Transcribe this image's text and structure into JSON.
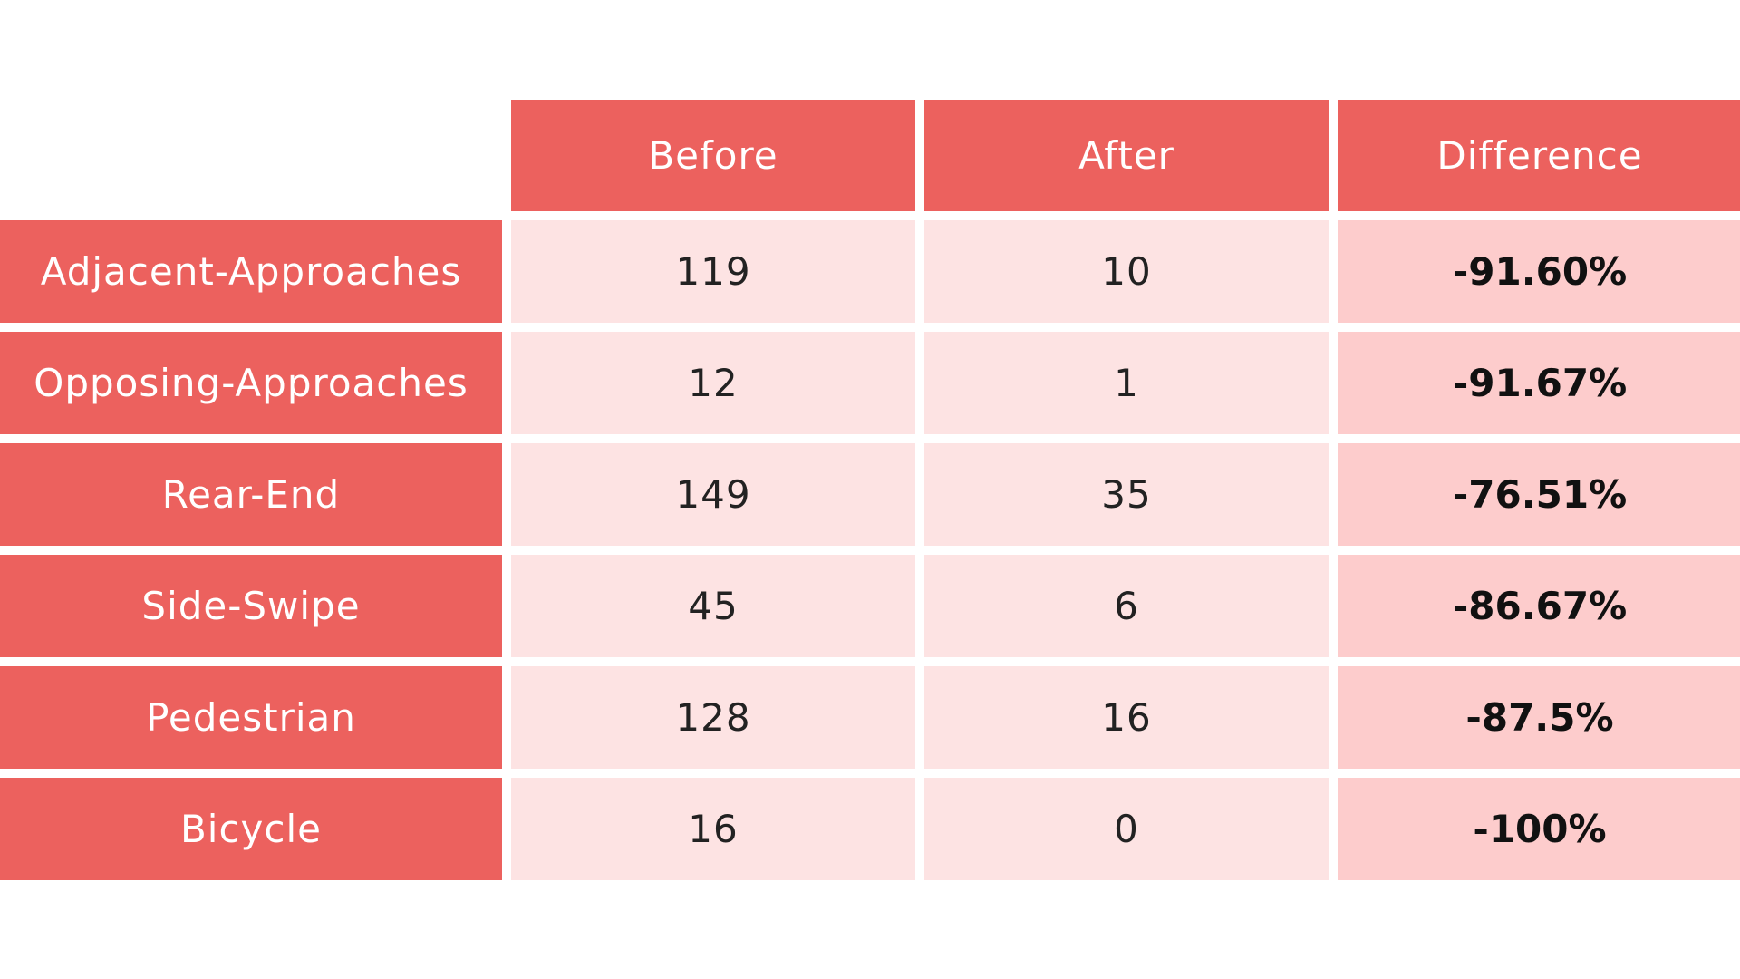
{
  "chart_data": {
    "type": "table",
    "columns": [
      "Before",
      "After",
      "Difference"
    ],
    "rows": [
      {
        "label": "Adjacent-Approaches",
        "before": "119",
        "after": "10",
        "difference": "-91.60%"
      },
      {
        "label": "Opposing-Approaches",
        "before": "12",
        "after": "1",
        "difference": "-91.67%"
      },
      {
        "label": "Rear-End",
        "before": "149",
        "after": "35",
        "difference": "-76.51%"
      },
      {
        "label": "Side-Swipe",
        "before": "45",
        "after": "6",
        "difference": "-86.67%"
      },
      {
        "label": "Pedestrian",
        "before": "128",
        "after": "16",
        "difference": "-87.5%"
      },
      {
        "label": "Bicycle",
        "before": "16",
        "after": "0",
        "difference": "-100%"
      }
    ]
  },
  "colors": {
    "header_red": "#ec615e",
    "value_pink": "#fde3e3",
    "difference_pink": "#fdcccc"
  }
}
